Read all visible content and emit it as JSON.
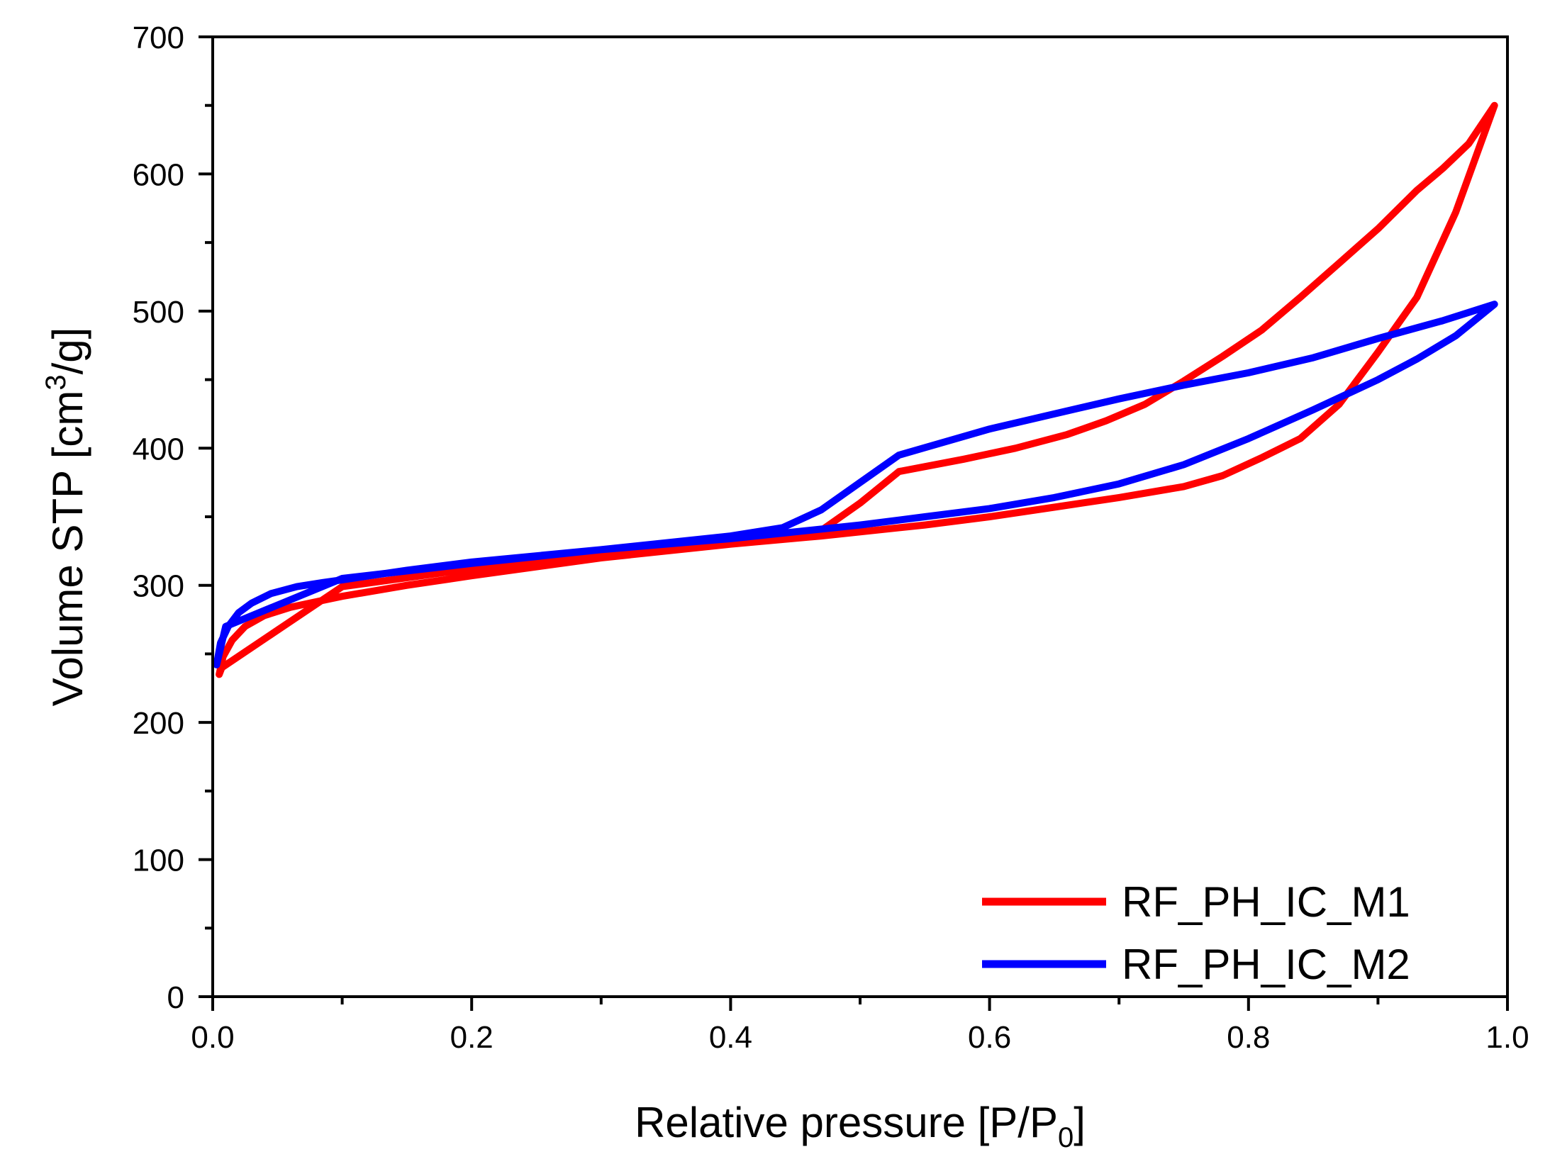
{
  "chart_data": {
    "type": "line",
    "title": "",
    "xlabel": "Relative pressure [P/P0]",
    "xlabel_main": "Relative pressure [P/P",
    "xlabel_sub": "0",
    "xlabel_close": "]",
    "ylabel": "Volume STP [cm3/g]",
    "ylabel_main": "Volume STP [cm",
    "ylabel_sup": "3",
    "ylabel_close": "/g]",
    "xlim": [
      0.0,
      1.0
    ],
    "ylim": [
      0,
      700
    ],
    "xticks": [
      0.0,
      0.2,
      0.4,
      0.6,
      0.8,
      1.0
    ],
    "xtick_labels": [
      "0.0",
      "0.2",
      "0.4",
      "0.6",
      "0.8",
      "1.0"
    ],
    "yticks": [
      0,
      100,
      200,
      300,
      400,
      500,
      600,
      700
    ],
    "ytick_labels": [
      "0",
      "100",
      "200",
      "300",
      "400",
      "500",
      "600",
      "700"
    ],
    "legend_position": "bottom-right",
    "grid": false,
    "series": [
      {
        "name": "RF_PH_IC_M1",
        "color": "#ff0000",
        "x": [
          0.005,
          0.008,
          0.015,
          0.025,
          0.04,
          0.06,
          0.08,
          0.1,
          0.15,
          0.2,
          0.3,
          0.4,
          0.47,
          0.55,
          0.6,
          0.65,
          0.7,
          0.75,
          0.78,
          0.81,
          0.84,
          0.87,
          0.9,
          0.93,
          0.96,
          0.99,
          0.97,
          0.95,
          0.93,
          0.9,
          0.87,
          0.84,
          0.81,
          0.78,
          0.75,
          0.72,
          0.69,
          0.66,
          0.62,
          0.58,
          0.53,
          0.5,
          0.47,
          0.44,
          0.3,
          0.2,
          0.1,
          0.007,
          0.005
        ],
        "y": [
          235,
          248,
          260,
          270,
          278,
          284,
          288,
          292,
          300,
          307,
          320,
          330,
          336,
          344,
          350,
          357,
          364,
          372,
          380,
          393,
          407,
          432,
          470,
          510,
          572,
          650,
          622,
          604,
          588,
          560,
          535,
          510,
          486,
          467,
          449,
          432,
          420,
          410,
          400,
          392,
          383,
          360,
          340,
          334,
          322,
          312,
          299,
          240,
          235
        ]
      },
      {
        "name": "RF_PH_IC_M2",
        "color": "#0000ff",
        "x": [
          0.003,
          0.006,
          0.012,
          0.02,
          0.03,
          0.045,
          0.065,
          0.085,
          0.1,
          0.15,
          0.2,
          0.3,
          0.4,
          0.5,
          0.55,
          0.6,
          0.65,
          0.7,
          0.75,
          0.8,
          0.85,
          0.9,
          0.93,
          0.96,
          0.99,
          0.95,
          0.9,
          0.85,
          0.8,
          0.75,
          0.7,
          0.65,
          0.6,
          0.53,
          0.5,
          0.47,
          0.44,
          0.4,
          0.3,
          0.2,
          0.1,
          0.01,
          0.003
        ],
        "y": [
          242,
          258,
          270,
          280,
          287,
          294,
          299,
          302,
          304,
          311,
          317,
          326,
          334,
          344,
          350,
          356,
          364,
          374,
          388,
          407,
          428,
          450,
          465,
          482,
          505,
          493,
          480,
          466,
          455,
          446,
          436,
          425,
          414,
          395,
          375,
          355,
          342,
          336,
          326,
          316,
          305,
          270,
          242
        ]
      }
    ]
  }
}
